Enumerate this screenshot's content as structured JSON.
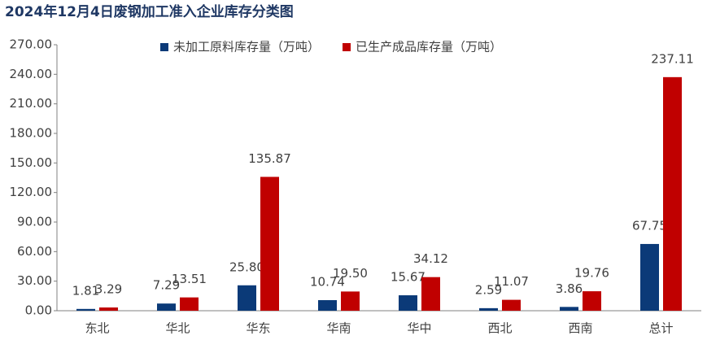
{
  "chart_data": {
    "type": "bar",
    "title": "2024年12月4日废钢加工准入企业库存分类图",
    "categories": [
      "东北",
      "华北",
      "华东",
      "华南",
      "华中",
      "西北",
      "西南",
      "总计"
    ],
    "series": [
      {
        "name": "未加工原料库存量（万吨）",
        "color": "#0b3a78",
        "values": [
          1.81,
          7.29,
          25.8,
          10.74,
          15.67,
          2.59,
          3.86,
          67.75
        ],
        "value_labels": [
          "1.81",
          "7.29",
          "25.80",
          "10.74",
          "15.67",
          "2.59",
          "3.86",
          "67.75"
        ]
      },
      {
        "name": "已生产成品库存量（万吨）",
        "color": "#c00000",
        "values": [
          3.29,
          13.51,
          135.87,
          19.5,
          34.12,
          11.07,
          19.76,
          237.11
        ],
        "value_labels": [
          "3.29",
          "13.51",
          "135.87",
          "19.50",
          "34.12",
          "11.07",
          "19.76",
          "237.11"
        ]
      }
    ],
    "ylim": [
      0,
      270
    ],
    "yticks": [
      {
        "value": 0,
        "label": "0.00"
      },
      {
        "value": 30,
        "label": "30.00"
      },
      {
        "value": 60,
        "label": "60.00"
      },
      {
        "value": 90,
        "label": "90.00"
      },
      {
        "value": 120,
        "label": "120.00"
      },
      {
        "value": 150,
        "label": "150.00"
      },
      {
        "value": 180,
        "label": "180.00"
      },
      {
        "value": 210,
        "label": "210.00"
      },
      {
        "value": 240,
        "label": "240.00"
      },
      {
        "value": 270,
        "label": "270.00"
      }
    ],
    "legend": "top"
  }
}
